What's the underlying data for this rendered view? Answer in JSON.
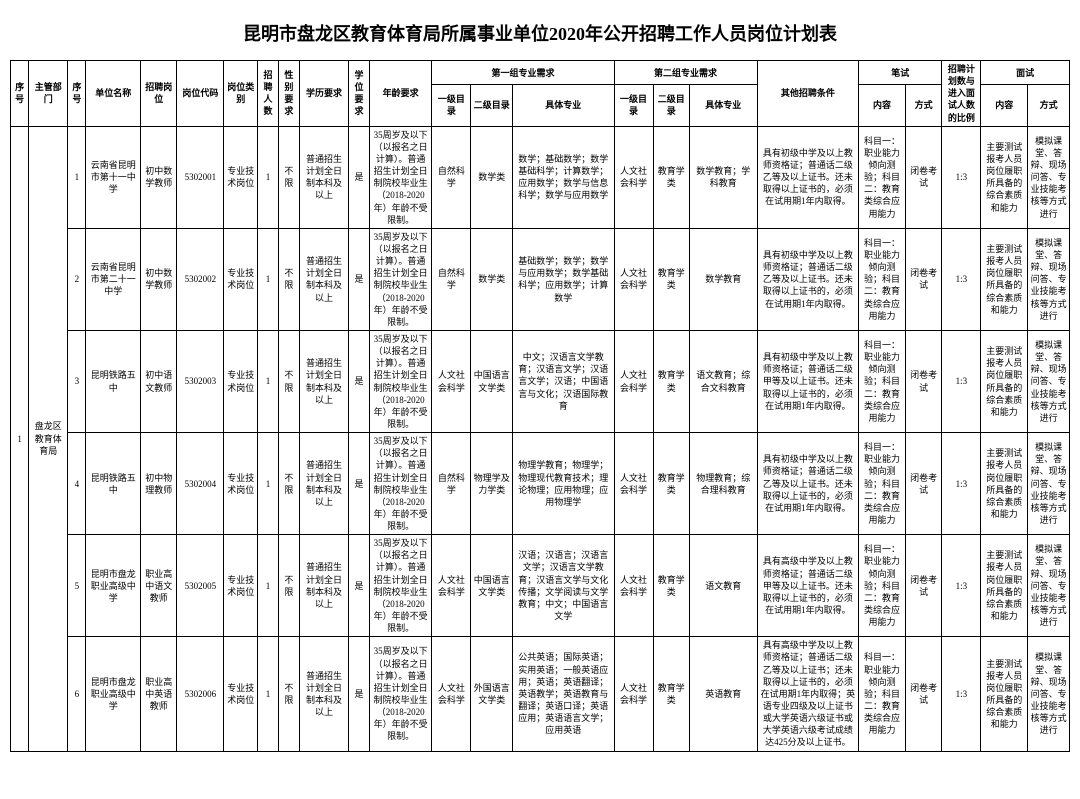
{
  "title": "昆明市盘龙区教育体育局所属事业单位2020年公开招聘工作人员岗位计划表",
  "headers": {
    "seq": "序号",
    "dept": "主管部门",
    "idx": "序号",
    "unit": "单位名称",
    "postname": "招聘岗位",
    "postcode": "岗位代码",
    "postcat": "岗位类别",
    "count": "招聘人数",
    "gender": "性别要求",
    "edu": "学历要求",
    "degree": "学位要求",
    "age": "年龄要求",
    "group1": "第一组专业需求",
    "group2": "第二组专业需求",
    "g_a": "一级目录",
    "g_b": "二级目录",
    "g_c": "具体专业",
    "other": "其他招聘条件",
    "written": "笔试",
    "exam_content": "内容",
    "exam_method": "方式",
    "ratio": "招聘计划数与进入面试人数的比例",
    "interview": "面试",
    "int_content": "内容",
    "int_method": "方式"
  },
  "groupSeq": "1",
  "groupDept": "盘龙区教育体育局",
  "rows": [
    {
      "idx": "1",
      "unit": "云南省昆明市第十一中学",
      "postname": "初中数学教师",
      "postcode": "5302001",
      "postcat": "专业技术岗位",
      "count": "1",
      "gender": "不限",
      "edu": "普通招生计划全日制本科及以上",
      "degree": "是",
      "age": "35周岁及以下（以报名之日计算）。普通招生计划全日制院校毕业生（2018-2020年）年龄不受限制。",
      "g1a": "自然科学",
      "g1b": "数学类",
      "g1c": "数学；基础数学；数学基础科学；计算数学；应用数学；数学与信息科学；数学与应用数学",
      "g2a": "人文社会科学",
      "g2b": "教育学类",
      "g2c": "数学教育；学科教育",
      "other": "具有初级中学及以上教师资格证；普通话二级乙等及以上证书。还未取得以上证书的，必须在试用期1年内取得。",
      "examc": "科目一：职业能力倾向测验；科目二：教育类综合应用能力",
      "examm": "闭卷考试",
      "ratio": "1:3",
      "intc": "主要测试报考人员岗位履职所具备的综合素质和能力",
      "intm": "模拟课堂、答辩、现场问答、专业技能考核等方式进行"
    },
    {
      "idx": "2",
      "unit": "云南省昆明市第二十一中学",
      "postname": "初中数学教师",
      "postcode": "5302002",
      "postcat": "专业技术岗位",
      "count": "1",
      "gender": "不限",
      "edu": "普通招生计划全日制本科及以上",
      "degree": "是",
      "age": "35周岁及以下（以报名之日计算）。普通招生计划全日制院校毕业生（2018-2020年）年龄不受限制。",
      "g1a": "自然科学",
      "g1b": "数学类",
      "g1c": "基础数学；数学；数学与应用数学；数学基础科学；应用数学；计算数学",
      "g2a": "人文社会科学",
      "g2b": "教育学类",
      "g2c": "数学教育",
      "other": "具有初级中学及以上教师资格证；普通话二级乙等及以上证书。还未取得以上证书的，必须在试用期1年内取得。",
      "examc": "科目一：职业能力倾向测验；科目二：教育类综合应用能力",
      "examm": "闭卷考试",
      "ratio": "1:3",
      "intc": "主要测试报考人员岗位履职所具备的综合素质和能力",
      "intm": "模拟课堂、答辩、现场问答、专业技能考核等方式进行"
    },
    {
      "idx": "3",
      "unit": "昆明铁路五中",
      "postname": "初中语文教师",
      "postcode": "5302003",
      "postcat": "专业技术岗位",
      "count": "1",
      "gender": "不限",
      "edu": "普通招生计划全日制本科及以上",
      "degree": "是",
      "age": "35周岁及以下（以报名之日计算）。普通招生计划全日制院校毕业生（2018-2020年）年龄不受限制。",
      "g1a": "人文社会科学",
      "g1b": "中国语言文学类",
      "g1c": "中文；汉语言文学教育；汉语言文学；汉语言文学；汉语；中国语言与文化；汉语国际教育",
      "g2a": "人文社会科学",
      "g2b": "教育学类",
      "g2c": "语文教育；综合文科教育",
      "other": "具有初级中学及以上教师资格证；普通话二级甲等及以上证书。还未取得以上证书的，必须在试用期1年内取得。",
      "examc": "科目一：职业能力倾向测验；科目二：教育类综合应用能力",
      "examm": "闭卷考试",
      "ratio": "1:3",
      "intc": "主要测试报考人员岗位履职所具备的综合素质和能力",
      "intm": "模拟课堂、答辩、现场问答、专业技能考核等方式进行"
    },
    {
      "idx": "4",
      "unit": "昆明铁路五中",
      "postname": "初中物理教师",
      "postcode": "5302004",
      "postcat": "专业技术岗位",
      "count": "1",
      "gender": "不限",
      "edu": "普通招生计划全日制本科及以上",
      "degree": "是",
      "age": "35周岁及以下（以报名之日计算）。普通招生计划全日制院校毕业生（2018-2020年）年龄不受限制。",
      "g1a": "自然科学",
      "g1b": "物理学及力学类",
      "g1c": "物理学教育；物理学；物理现代教育技术；理论物理；应用物理；应用物理学",
      "g2a": "人文社会科学",
      "g2b": "教育学类",
      "g2c": "物理教育；综合理科教育",
      "other": "具有初级中学及以上教师资格证；普通话二级乙等及以上证书。还未取得以上证书的，必须在试用期1年内取得。",
      "examc": "科目一：职业能力倾向测验；科目二：教育类综合应用能力",
      "examm": "闭卷考试",
      "ratio": "1:3",
      "intc": "主要测试报考人员岗位履职所具备的综合素质和能力",
      "intm": "模拟课堂、答辩、现场问答、专业技能考核等方式进行"
    },
    {
      "idx": "5",
      "unit": "昆明市盘龙职业高级中学",
      "postname": "职业高中语文教师",
      "postcode": "5302005",
      "postcat": "专业技术岗位",
      "count": "1",
      "gender": "不限",
      "edu": "普通招生计划全日制本科及以上",
      "degree": "是",
      "age": "35周岁及以下（以报名之日计算）。普通招生计划全日制院校毕业生（2018-2020年）年龄不受限制。",
      "g1a": "人文社会科学",
      "g1b": "中国语言文学类",
      "g1c": "汉语；汉语言；汉语言文学；汉语言文学教育；汉语言文学与文化传播；文学阅读与文学教育；中文；中国语言文学",
      "g2a": "人文社会科学",
      "g2b": "教育学类",
      "g2c": "语文教育",
      "other": "具有高级中学及以上教师资格证；普通话二级甲等及以上证书。还未取得以上证书的，必须在试用期1年内取得。",
      "examc": "科目一：职业能力倾向测验；科目二：教育类综合应用能力",
      "examm": "闭卷考试",
      "ratio": "1:3",
      "intc": "主要测试报考人员岗位履职所具备的综合素质和能力",
      "intm": "模拟课堂、答辩、现场问答、专业技能考核等方式进行"
    },
    {
      "idx": "6",
      "unit": "昆明市盘龙职业高级中学",
      "postname": "职业高中英语教师",
      "postcode": "5302006",
      "postcat": "专业技术岗位",
      "count": "1",
      "gender": "不限",
      "edu": "普通招生计划全日制本科及以上",
      "degree": "是",
      "age": "35周岁及以下（以报名之日计算）。普通招生计划全日制院校毕业生（2018-2020年）年龄不受限制。",
      "g1a": "人文社会科学",
      "g1b": "外国语言文学类",
      "g1c": "公共英语；国际英语；实用英语；一般英语应用；英语；英语翻译；英语教学；英语教育与翻译；英语口译；英语应用；英语语言文学；应用英语",
      "g2a": "人文社会科学",
      "g2b": "教育学类",
      "g2c": "英语教育",
      "other": "具有高级中学及以上教师资格证；普通话二级乙等及以上证书；还未取得以上证书的，必须在试用期1年内取得；英语专业四级及以上证书或大学英语六级证书或大学英语六级考试成绩达425分及以上证书。",
      "examc": "科目一：职业能力倾向测验；科目二：教育类综合应用能力",
      "examm": "闭卷考试",
      "ratio": "1:3",
      "intc": "主要测试报考人员岗位履职所具备的综合素质和能力",
      "intm": "模拟课堂、答辩、现场问答、专业技能考核等方式进行"
    }
  ]
}
